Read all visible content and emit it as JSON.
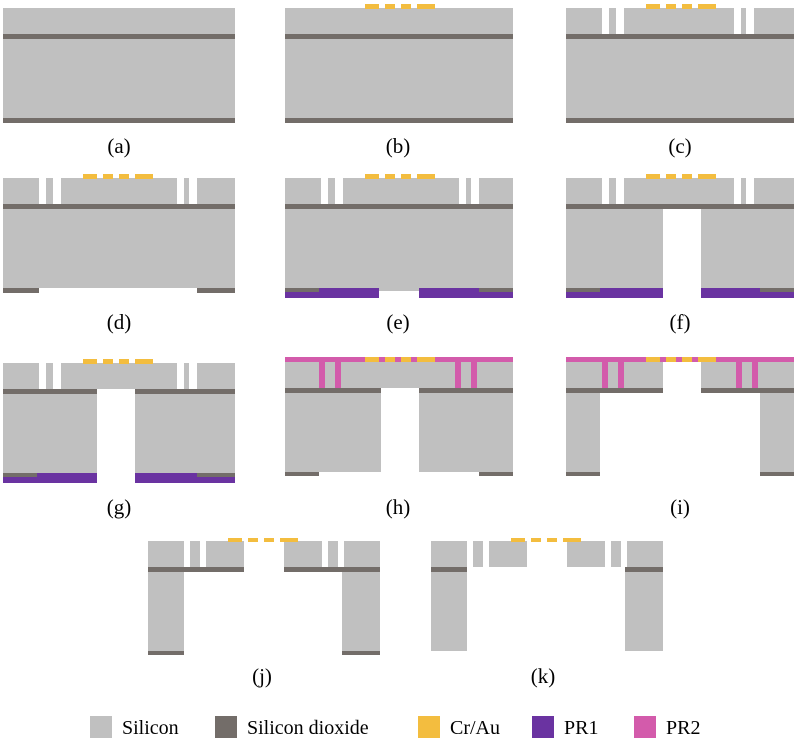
{
  "colors": {
    "silicon": "#c0c0c0",
    "oxide": "#736d69",
    "crau": "#f3bd3f",
    "pr1": "#6a33a1",
    "pr2": "#d35bab"
  },
  "panels": [
    {
      "label": "(a)"
    },
    {
      "label": "(b)"
    },
    {
      "label": "(c)"
    },
    {
      "label": "(d)"
    },
    {
      "label": "(e)"
    },
    {
      "label": "(f)"
    },
    {
      "label": "(g)"
    },
    {
      "label": "(h)"
    },
    {
      "label": "(i)"
    },
    {
      "label": "(j)"
    },
    {
      "label": "(k)"
    }
  ],
  "legend": [
    {
      "label": "Silicon",
      "color": "#c0c0c0"
    },
    {
      "label": "Silicon dioxide",
      "color": "#736d69"
    },
    {
      "label": "Cr/Au",
      "color": "#f3bd3f"
    },
    {
      "label": "PR1",
      "color": "#6a33a1"
    },
    {
      "label": "PR2",
      "color": "#d35bab"
    }
  ]
}
